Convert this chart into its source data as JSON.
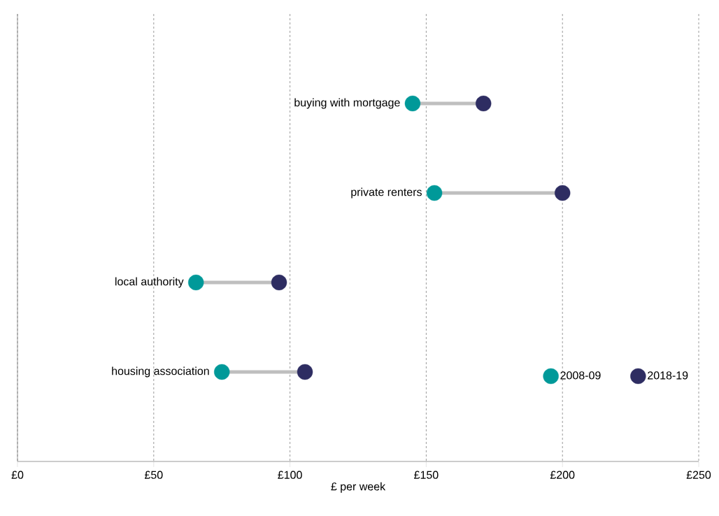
{
  "chart_data": {
    "type": "scatter",
    "orientation": "horizontal",
    "xlabel": "£ per week",
    "categories": [
      "buying with mortgage",
      "private renters",
      "local authority",
      "housing association"
    ],
    "series": [
      {
        "name": "2008-09",
        "color": "#009999",
        "values": [
          145,
          153,
          65.5,
          75
        ]
      },
      {
        "name": "2018-19",
        "color": "#2e2d62",
        "values": [
          171,
          200,
          96,
          105.5
        ]
      }
    ],
    "xlim": [
      0,
      250
    ],
    "xticks": [
      {
        "value": 0,
        "label": "£0"
      },
      {
        "value": 50,
        "label": "£50"
      },
      {
        "value": 100,
        "label": "£100"
      },
      {
        "value": 150,
        "label": "£150"
      },
      {
        "value": 200,
        "label": "£200"
      },
      {
        "value": 250,
        "label": "£250"
      }
    ],
    "grid": "x",
    "legend": "bottom right",
    "marker": "circle"
  }
}
